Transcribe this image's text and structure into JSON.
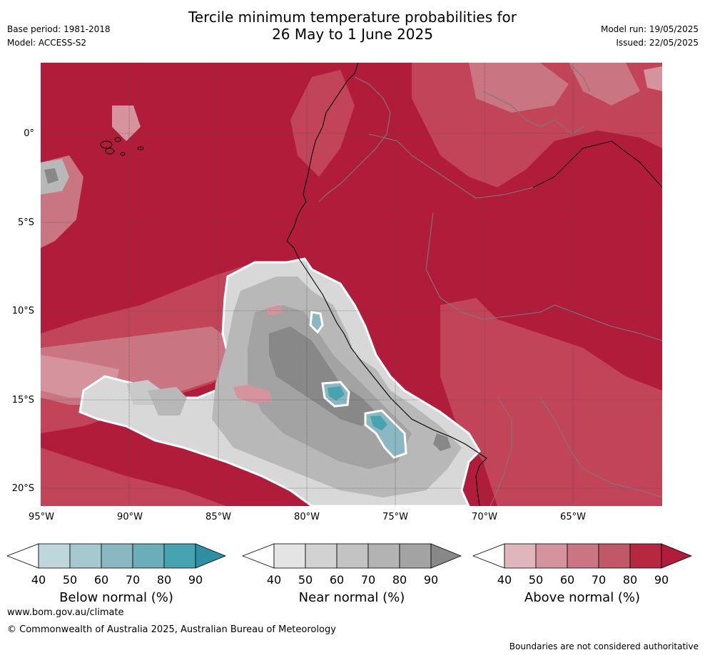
{
  "header": {
    "title_line1": "Tercile minimum temperature probabilities for",
    "title_line2": "26 May to 1 June 2025",
    "base_period": "Base period: 1981-2018",
    "model": "Model: ACCESS-S2",
    "model_run": "Model run: 19/05/2025",
    "issued": "Issued: 22/05/2025"
  },
  "map": {
    "lat_labels": [
      "0°",
      "5°S",
      "10°S",
      "15°S",
      "20°S"
    ],
    "lon_labels": [
      "95°W",
      "90°W",
      "85°W",
      "80°W",
      "75°W",
      "70°W",
      "65°W"
    ],
    "lat_range": [
      -21,
      4
    ],
    "lon_range": [
      -95,
      -60
    ],
    "background_category": "Above normal 80-90"
  },
  "legends": [
    {
      "name": "Below normal (%)",
      "ticks": [
        "40",
        "50",
        "60",
        "70",
        "80",
        "90"
      ],
      "colors": [
        "#bed6dc",
        "#a6c8cf",
        "#89b7c2",
        "#6badb8",
        "#48a3b1",
        "#2f8fa2"
      ]
    },
    {
      "name": "Near normal (%)",
      "ticks": [
        "40",
        "50",
        "60",
        "70",
        "80",
        "90"
      ],
      "colors": [
        "#e4e4e4",
        "#d2d2d2",
        "#c3c3c3",
        "#b3b3b3",
        "#a3a3a3",
        "#888888"
      ]
    },
    {
      "name": "Above normal (%)",
      "ticks": [
        "40",
        "50",
        "60",
        "70",
        "80",
        "90"
      ],
      "colors": [
        "#e0b6bc",
        "#d4939d",
        "#c97682",
        "#c05868",
        "#b5283f",
        "#b01c3a"
      ]
    }
  ],
  "footer": {
    "url": "www.bom.gov.au/climate",
    "copyright": "© Commonwealth of Australia 2025, Australian Bureau of Meteorology",
    "note": "Boundaries are not considered authoritative"
  }
}
